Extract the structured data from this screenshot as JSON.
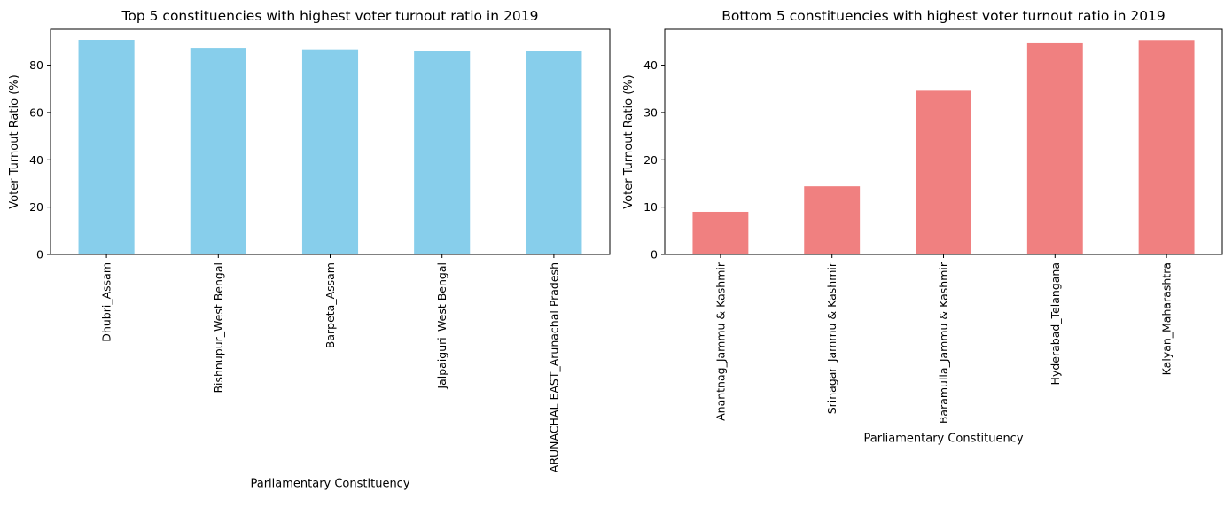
{
  "chart_data": [
    {
      "type": "bar",
      "title": "Top 5 constituencies with highest voter turnout ratio in 2019",
      "xlabel": "Parliamentary Constituency",
      "ylabel": "Voter Turnout Ratio (%)",
      "categories": [
        "Dhubri_Assam",
        "Bishnupur_West Bengal",
        "Barpeta_Assam",
        "Jalpaiguri_West Bengal",
        "ARUNACHAL EAST_Arunachal Pradesh"
      ],
      "values": [
        90.7,
        87.3,
        86.7,
        86.2,
        86.1
      ],
      "ylim": [
        0,
        95.2
      ],
      "yticks": [
        0,
        20,
        40,
        60,
        80
      ],
      "color": "#87ceeb",
      "grid": false
    },
    {
      "type": "bar",
      "title": "Bottom 5 constituencies with highest voter turnout ratio in 2019",
      "xlabel": "Parliamentary Constituency",
      "ylabel": "Voter Turnout Ratio (%)",
      "categories": [
        "Anantnag_Jammu & Kashmir",
        "Srinagar_Jammu & Kashmir",
        "Baramulla_Jammu & Kashmir",
        "Hyderabad_Telangana",
        "Kalyan_Maharashtra"
      ],
      "values": [
        9.0,
        14.4,
        34.6,
        44.8,
        45.3
      ],
      "ylim": [
        0,
        47.6
      ],
      "yticks": [
        0,
        10,
        20,
        30,
        40
      ],
      "color": "#f08080",
      "grid": false
    }
  ]
}
